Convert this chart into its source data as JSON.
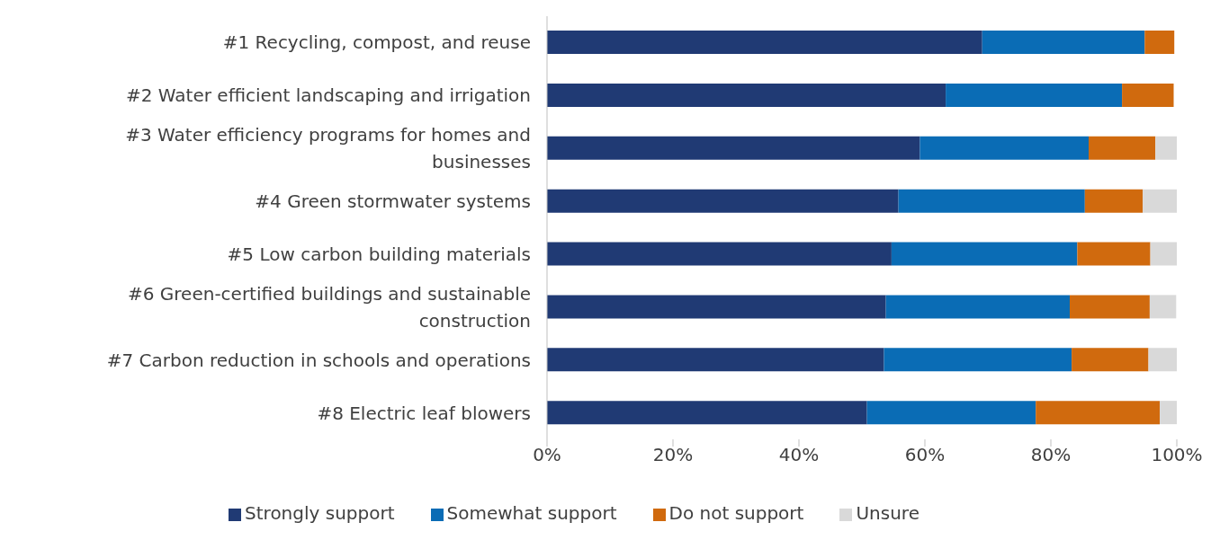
{
  "chart_data": {
    "type": "bar",
    "orientation": "horizontal",
    "stacked": true,
    "categories": [
      "#1 Recycling, compost, and reuse",
      "#2 Water efficient landscaping and irrigation",
      "#3 Water efficiency programs for homes and businesses",
      "#4 Green stormwater systems",
      "#5 Low carbon building materials",
      "#6 Green-certified buildings and sustainable construction",
      "#7 Carbon reduction in schools and operations",
      "#8 Electric leaf blowers"
    ],
    "series": [
      {
        "name": "Strongly support",
        "color": "#203a74",
        "values": [
          69.1,
          63.3,
          59.2,
          55.8,
          54.7,
          53.8,
          53.5,
          50.8
        ]
      },
      {
        "name": "Somewhat support",
        "color": "#0a6cb5",
        "values": [
          25.8,
          28.0,
          26.8,
          29.6,
          29.5,
          29.2,
          29.8,
          26.8
        ]
      },
      {
        "name": "Do not support",
        "color": "#d06a0e",
        "values": [
          4.7,
          8.2,
          10.6,
          9.2,
          11.6,
          12.7,
          12.2,
          19.7
        ]
      },
      {
        "name": "Unsure",
        "color": "#d9d9d9",
        "values": [
          null,
          null,
          3.4,
          5.4,
          4.2,
          4.2,
          4.5,
          2.7
        ]
      }
    ],
    "xlim": [
      0,
      100
    ],
    "xticks": [
      {
        "value": 0,
        "label": "0%"
      },
      {
        "value": 20,
        "label": "20%"
      },
      {
        "value": 40,
        "label": "40%"
      },
      {
        "value": 60,
        "label": "60%"
      },
      {
        "value": 80,
        "label": "80%"
      },
      {
        "value": 100,
        "label": "100%"
      }
    ],
    "grid": false,
    "legend": "bottom"
  }
}
